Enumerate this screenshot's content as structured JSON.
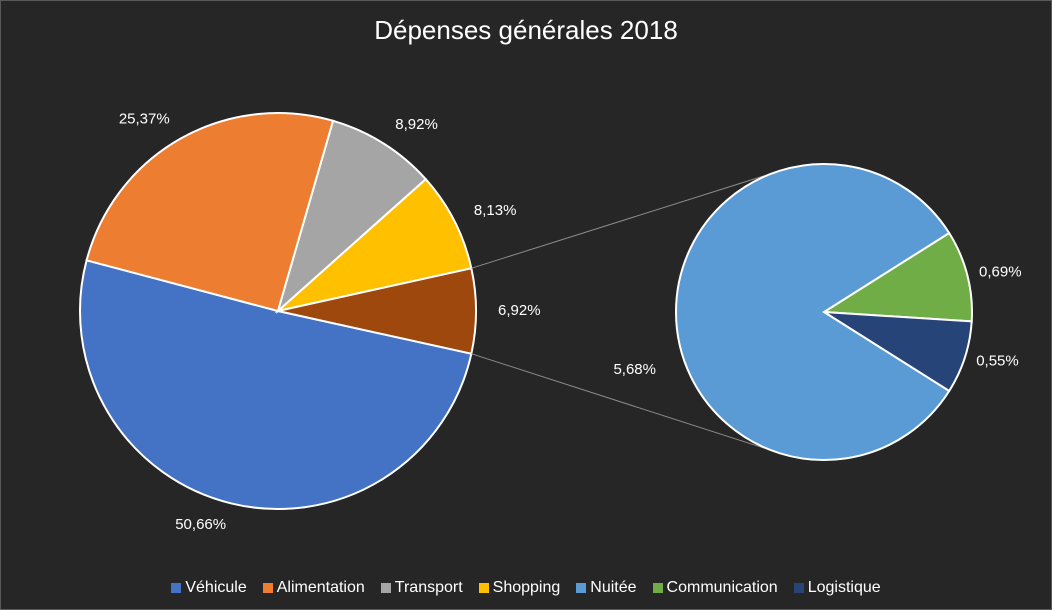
{
  "chart_data": {
    "type": "pie",
    "title": "Dépenses générales 2018",
    "series": [
      {
        "name": "Véhicule",
        "value": 50.66,
        "label": "50,66%",
        "color": "#4472C4"
      },
      {
        "name": "Alimentation",
        "value": 25.37,
        "label": "25,37%",
        "color": "#ED7D31"
      },
      {
        "name": "Transport",
        "value": 8.92,
        "label": "8,92%",
        "color": "#A5A5A5"
      },
      {
        "name": "Shopping",
        "value": 8.13,
        "label": "8,13%",
        "color": "#FFC000"
      },
      {
        "name": "Nuitée",
        "value": 5.68,
        "label": "5,68%",
        "color": "#5B9BD5"
      },
      {
        "name": "Communication",
        "value": 0.69,
        "label": "0,69%",
        "color": "#70AD47"
      },
      {
        "name": "Logistique",
        "value": 0.55,
        "label": "0,55%",
        "color": "#264478"
      }
    ],
    "main_order": [
      "Véhicule",
      "Alimentation",
      "Transport",
      "Shopping"
    ],
    "other_slice": {
      "value": 6.92,
      "label": "6,92%",
      "color": "#9E480E"
    },
    "secondary_order": [
      "Nuitée",
      "Communication",
      "Logistique"
    ],
    "legend_position": "bottom"
  }
}
